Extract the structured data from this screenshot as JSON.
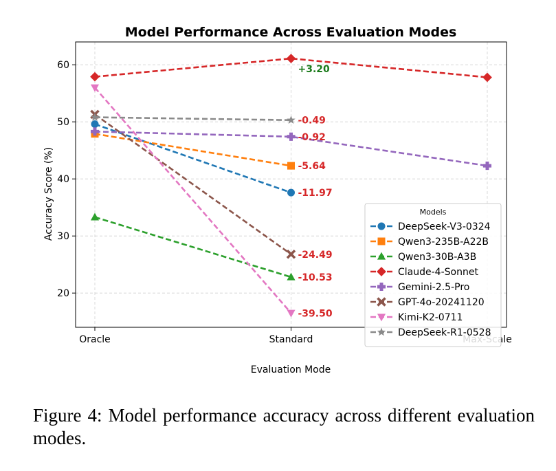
{
  "chart_data": {
    "type": "line",
    "title": "Model Performance Across Evaluation Modes",
    "xlabel": "Evaluation Mode",
    "ylabel": "Accuracy Score (%)",
    "categories": [
      "Oracle",
      "Standard",
      "Max-Scale"
    ],
    "ylim": [
      14,
      64
    ],
    "yticks": [
      20,
      30,
      40,
      50,
      60
    ],
    "grid": true,
    "legend": {
      "title": "Models",
      "position": "lower-right"
    },
    "series": [
      {
        "name": "DeepSeek-V3-0324",
        "color": "#1f77b4",
        "marker": "circle",
        "values": [
          49.6,
          37.6,
          null
        ],
        "annotation": "-11.97",
        "annotation_color": "#d62728"
      },
      {
        "name": "Qwen3-235B-A22B",
        "color": "#ff7f0e",
        "marker": "square",
        "values": [
          47.9,
          42.3,
          null
        ],
        "annotation": "-5.64",
        "annotation_color": "#d62728"
      },
      {
        "name": "Qwen3-30B-A3B",
        "color": "#2ca02c",
        "marker": "triangle-up",
        "values": [
          33.3,
          22.8,
          null
        ],
        "annotation": "-10.53",
        "annotation_color": "#d62728"
      },
      {
        "name": "Claude-4-Sonnet",
        "color": "#d62728",
        "marker": "diamond",
        "values": [
          57.9,
          61.1,
          57.8
        ],
        "annotation": "+3.20",
        "annotation_color": "#1a7a1a"
      },
      {
        "name": "Gemini-2.5-Pro",
        "color": "#9467bd",
        "marker": "plus",
        "values": [
          48.3,
          47.4,
          42.3
        ],
        "annotation": "-0.92",
        "annotation_color": "#d62728"
      },
      {
        "name": "GPT-4o-20241120",
        "color": "#8c564b",
        "marker": "x",
        "values": [
          51.3,
          26.8,
          null
        ],
        "annotation": "-24.49",
        "annotation_color": "#d62728"
      },
      {
        "name": "Kimi-K2-0711",
        "color": "#e377c2",
        "marker": "triangle-down",
        "values": [
          56.0,
          16.5,
          null
        ],
        "annotation": "-39.50",
        "annotation_color": "#d62728"
      },
      {
        "name": "DeepSeek-R1-0528",
        "color": "#8a8a8a",
        "marker": "star",
        "values": [
          50.8,
          50.3,
          null
        ],
        "annotation": "-0.49",
        "annotation_color": "#d62728"
      }
    ]
  },
  "caption": "Figure 4: Model performance accuracy across different evaluation modes."
}
